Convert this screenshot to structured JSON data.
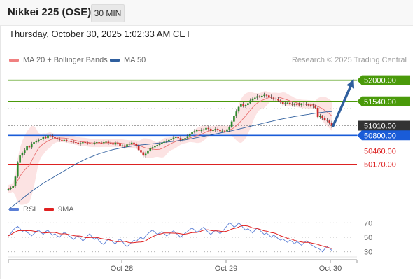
{
  "header": {
    "title": "Nikkei 225 (OSE)",
    "timeframe": "30 MIN"
  },
  "timestamp": "Thursday, October 30, 2025 1:02:33 AM CET",
  "legend_main": [
    {
      "label": "MA 20 + Bollinger Bands",
      "color": "#f08080"
    },
    {
      "label": "MA 50",
      "color": "#2f5f9e"
    }
  ],
  "copyright": "Research © 2025 Trading Central",
  "legend_rsi": [
    {
      "label": "RSI",
      "color": "#5b7fd6"
    },
    {
      "label": "9MA",
      "color": "#e02020"
    }
  ],
  "chart_data": {
    "type": "candlestick",
    "price_ylim": [
      49400,
      52300
    ],
    "rsi_ylim": [
      20,
      80
    ],
    "rsi_ticks": [
      70,
      50,
      30
    ],
    "x_ticks": [
      "Oct 28",
      "Oct 29",
      "Oct 30"
    ],
    "levels": [
      {
        "value": 52000,
        "label": "52000.00",
        "kind": "resistance",
        "color": "#4a9a0a"
      },
      {
        "value": 51540,
        "label": "51540.00",
        "kind": "resistance",
        "color": "#4a9a0a"
      },
      {
        "value": 51010,
        "label": "51010.00",
        "kind": "last",
        "color": "#333333"
      },
      {
        "value": 50800,
        "label": "50800.00",
        "kind": "pivot",
        "color": "#1a5cd8"
      },
      {
        "value": 50460,
        "label": "50460.00",
        "kind": "support",
        "color": "#dd2222"
      },
      {
        "value": 50170,
        "label": "50170.00",
        "kind": "support",
        "color": "#dd2222"
      }
    ],
    "close": [
      49630,
      49650,
      49700,
      49900,
      50200,
      50360,
      50420,
      50480,
      50560,
      50540,
      50620,
      50650,
      50680,
      50700,
      50720,
      50760,
      50740,
      50800,
      50790,
      50760,
      50740,
      50720,
      50700,
      50690,
      50700,
      50680,
      50670,
      50660,
      50650,
      50640,
      50620,
      50630,
      50650,
      50640,
      50630,
      50610,
      50620,
      50640,
      50650,
      50640,
      50630,
      50650,
      50660,
      50640,
      50630,
      50600,
      50640,
      50630,
      50560,
      50580,
      50550,
      50600,
      50620,
      50640,
      50610,
      50560,
      50480,
      50430,
      50360,
      50400,
      50470,
      50520,
      50540,
      50560,
      50590,
      50610,
      50640,
      50660,
      50680,
      50700,
      50720,
      50750,
      50760,
      50740,
      50700,
      50720,
      50740,
      50780,
      50830,
      50870,
      50890,
      50920,
      50900,
      50910,
      50930,
      50960,
      50940,
      50900,
      50910,
      50940,
      50920,
      50890,
      50900,
      50890,
      50930,
      50980,
      51100,
      51220,
      51320,
      51420,
      51480,
      51440,
      51460,
      51500,
      51560,
      51600,
      51620,
      51650,
      51640,
      51660,
      51680,
      51670,
      51640,
      51620,
      51600,
      51590,
      51560,
      51520,
      51490,
      51500,
      51510,
      51490,
      51470,
      51480,
      51470,
      51460,
      51480,
      51490,
      51470,
      51460,
      51450,
      51440,
      51400,
      51200,
      51220,
      51180,
      51140,
      51120,
      51080,
      51010
    ],
    "ma50": [
      49180,
      49220,
      49260,
      49300,
      49340,
      49380,
      49420,
      49460,
      49500,
      49540,
      49580,
      49615,
      49650,
      49685,
      49720,
      49755,
      49785,
      49815,
      49845,
      49875,
      49905,
      49935,
      49965,
      49995,
      50025,
      50055,
      50085,
      50115,
      50145,
      50175,
      50200,
      50225,
      50250,
      50275,
      50300,
      50320,
      50340,
      50360,
      50380,
      50400,
      50415,
      50430,
      50445,
      50460,
      50475,
      50490,
      50500,
      50510,
      50520,
      50530,
      50540,
      50548,
      50556,
      50564,
      50572,
      50580,
      50585,
      50590,
      50595,
      50600,
      50605,
      50610,
      50616,
      50622,
      50628,
      50634,
      50640,
      50646,
      50652,
      50658,
      50664,
      50670,
      50676,
      50682,
      50688,
      50694,
      50700,
      50710,
      50720,
      50730,
      50740,
      50750,
      50760,
      50770,
      50780,
      50790,
      50800,
      50810,
      50820,
      50830,
      50840,
      50850,
      50860,
      50870,
      50880,
      50890,
      50900,
      50912,
      50924,
      50936,
      50948,
      50960,
      50972,
      50984,
      50996,
      51008,
      51020,
      51032,
      51044,
      51056,
      51068,
      51080,
      51092,
      51104,
      51116,
      51128,
      51140,
      51150,
      51160,
      51170,
      51180,
      51190,
      51200,
      51210,
      51218,
      51226,
      51234,
      51242,
      51250,
      51258,
      51266,
      51274,
      51282,
      51290,
      51296,
      51302,
      51308,
      51312,
      51316,
      51320
    ],
    "rsi": [
      52,
      55,
      60,
      63,
      65,
      62,
      58,
      60,
      57,
      55,
      52,
      55,
      58,
      60,
      57,
      54,
      58,
      60,
      56,
      53,
      55,
      52,
      50,
      54,
      57,
      55,
      52,
      50,
      47,
      50,
      52,
      49,
      45,
      48,
      52,
      55,
      50,
      47,
      50,
      45,
      42,
      40,
      44,
      48,
      46,
      43,
      41,
      45,
      48,
      44,
      40,
      37,
      40,
      43,
      46,
      44,
      48,
      50,
      47,
      52,
      55,
      58,
      60,
      57,
      54,
      56,
      58,
      55,
      52,
      54,
      57,
      59,
      56,
      53,
      50,
      53,
      56,
      58,
      61,
      63,
      60,
      57,
      59,
      62,
      64,
      60,
      57,
      54,
      57,
      60,
      58,
      55,
      58,
      62,
      66,
      70,
      68,
      64,
      66,
      70,
      67,
      63,
      60,
      62,
      59,
      56,
      60,
      63,
      60,
      57,
      54,
      56,
      53,
      50,
      53,
      51,
      48,
      46,
      48,
      45,
      43,
      46,
      44,
      41,
      44,
      42,
      39,
      42,
      45,
      43,
      40,
      38,
      36,
      35,
      33,
      30,
      34,
      37,
      35,
      32
    ]
  }
}
